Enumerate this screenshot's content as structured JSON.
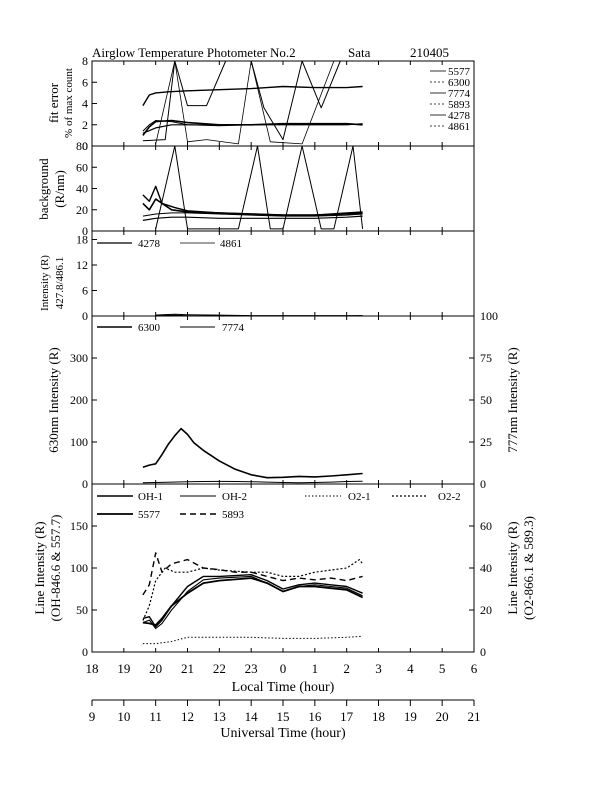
{
  "figure": {
    "title": "Airglow Temperature Photometer No.2",
    "site": "Sata",
    "date": "210405"
  },
  "chart_data": [
    {
      "panel": "fit_error",
      "type": "line",
      "ylabel": [
        "fit error",
        "% of max count"
      ],
      "ylim": [
        0,
        8
      ],
      "yticks": [
        0,
        2,
        4,
        6,
        8
      ],
      "xlim": [
        18,
        30
      ],
      "series": [
        {
          "name": "5577",
          "x": [
            19.6,
            19.8,
            20.0,
            20.4,
            21.0,
            22.0,
            23.0,
            23.5,
            24.0,
            25.0,
            26.0,
            26.5
          ],
          "y": [
            3.8,
            4.8,
            5.0,
            5.1,
            5.2,
            5.3,
            5.4,
            5.5,
            5.6,
            5.5,
            5.5,
            5.6
          ]
        },
        {
          "name": "6300",
          "x": [
            19.6,
            19.8,
            20.0,
            20.5,
            21.0,
            22.0,
            23.0,
            24.0,
            25.0,
            26.0,
            26.5
          ],
          "y": [
            1.0,
            1.8,
            2.3,
            2.4,
            2.2,
            2.0,
            2.0,
            2.1,
            2.1,
            2.1,
            2.0
          ]
        },
        {
          "name": "7774",
          "x": [
            19.6,
            19.8,
            20.0,
            20.5,
            21.0,
            22.0,
            23.0,
            24.0,
            25.0,
            26.0,
            26.5
          ],
          "y": [
            1.4,
            2.0,
            2.4,
            2.3,
            2.0,
            1.9,
            2.0,
            2.1,
            2.1,
            2.1,
            2.0
          ]
        },
        {
          "name": "5893",
          "x": [
            19.6,
            20.0,
            20.5,
            21.0,
            22.0,
            23.0,
            24.0,
            25.0,
            26.0,
            26.5
          ],
          "y": [
            1.2,
            1.7,
            2.0,
            2.0,
            2.0,
            2.0,
            2.0,
            2.0,
            2.0,
            2.1
          ]
        },
        {
          "name": "4278",
          "x": [
            19.6,
            20.3,
            20.6,
            21.0,
            21.6,
            22.2,
            23.0,
            23.4,
            24.0,
            24.6,
            25.2,
            25.8,
            26.2,
            26.5
          ],
          "y": [
            0.5,
            0.6,
            8.0,
            3.8,
            3.8,
            8.0,
            8.0,
            3.6,
            0.6,
            8.0,
            3.6,
            8.0,
            8.0,
            8.0
          ]
        },
        {
          "name": "4861",
          "x": [
            20.0,
            20.6,
            21.0,
            21.6,
            22.6,
            23.0,
            23.6,
            24.6,
            25.6,
            26.5
          ],
          "y": [
            0.2,
            8.0,
            0.4,
            0.6,
            0.2,
            8.0,
            0.4,
            0.2,
            8.0,
            8.0
          ]
        }
      ]
    },
    {
      "panel": "background",
      "type": "line",
      "ylabel": [
        "background",
        "(R/nm)"
      ],
      "ylim": [
        0,
        80
      ],
      "yticks": [
        0,
        20,
        40,
        60,
        80
      ],
      "xlim": [
        18,
        30
      ],
      "series": [
        {
          "name": "5577",
          "x": [
            19.6,
            19.8,
            20.0,
            20.2,
            20.6,
            21.0,
            22.0,
            23.0,
            24.0,
            25.0,
            26.0,
            26.5
          ],
          "y": [
            34,
            28,
            42,
            26,
            22,
            19,
            17,
            16,
            15,
            15,
            17,
            18
          ]
        },
        {
          "name": "6300",
          "x": [
            19.6,
            19.8,
            20.0,
            20.5,
            21.0,
            22.0,
            23.0,
            24.0,
            25.0,
            26.0,
            26.5
          ],
          "y": [
            26,
            20,
            30,
            20,
            18,
            17,
            16,
            15,
            15,
            16,
            17
          ]
        },
        {
          "name": "7774",
          "x": [
            19.6,
            20.0,
            20.5,
            21.0,
            22.0,
            23.0,
            24.0,
            25.0,
            26.0,
            26.5
          ],
          "y": [
            14,
            16,
            17,
            17,
            16,
            15,
            14,
            14,
            15,
            16
          ]
        },
        {
          "name": "5893",
          "x": [
            19.6,
            20.0,
            20.5,
            21.0,
            22.0,
            23.0,
            24.0,
            25.0,
            26.0,
            26.5
          ],
          "y": [
            10,
            12,
            13,
            13,
            12,
            12,
            12,
            12,
            13,
            14
          ]
        },
        {
          "name": "4278",
          "x": [
            20.0,
            20.6,
            21.0,
            21.6,
            22.6,
            23.2,
            23.6,
            24.0,
            24.6,
            25.2,
            25.6,
            26.2,
            26.5
          ],
          "y": [
            2,
            80,
            2,
            2,
            2,
            80,
            2,
            2,
            80,
            2,
            2,
            80,
            2
          ]
        }
      ]
    },
    {
      "panel": "intensity_427_486",
      "type": "line",
      "ylabel": [
        "Intensity (R)",
        "427.8/486.1"
      ],
      "ylim": [
        0,
        20
      ],
      "yticks": [
        0,
        6,
        12,
        18
      ],
      "xlim": [
        18,
        30
      ],
      "series": [
        {
          "name": "4278",
          "x": [
            20.0,
            20.2,
            20.6,
            21.0,
            22.0,
            23.0,
            24.0,
            25.0,
            26.0,
            26.5
          ],
          "y": [
            0.2,
            0.3,
            0.4,
            0.3,
            0.2,
            0.1,
            0.1,
            0.1,
            0.1,
            0.1
          ]
        },
        {
          "name": "4861",
          "x": [
            20.0,
            20.6,
            21.0,
            22.0,
            23.0,
            23.3,
            24.0,
            25.0,
            26.0,
            26.5
          ],
          "y": [
            0.1,
            0.2,
            0.1,
            0.0,
            -0.2,
            -0.3,
            -0.2,
            -0.1,
            0.0,
            0.1
          ]
        }
      ]
    },
    {
      "panel": "red_line",
      "type": "line",
      "ylabel": "630nm Intensity (R)",
      "y2label": "777nm Intensity (R)",
      "ylim": [
        0,
        400
      ],
      "yticks": [
        0,
        100,
        200,
        300
      ],
      "y2lim": [
        0,
        100
      ],
      "y2ticks": [
        0,
        25,
        50,
        75,
        100
      ],
      "xlim": [
        18,
        30
      ],
      "series": [
        {
          "name": "6300",
          "x": [
            19.6,
            19.8,
            20.0,
            20.2,
            20.4,
            20.6,
            20.8,
            21.0,
            21.2,
            21.5,
            22.0,
            22.5,
            23.0,
            23.5,
            24.0,
            24.5,
            25.0,
            25.5,
            26.0,
            26.5
          ],
          "y": [
            40,
            45,
            48,
            70,
            95,
            115,
            132,
            118,
            98,
            80,
            55,
            35,
            22,
            15,
            16,
            18,
            17,
            19,
            22,
            25
          ]
        },
        {
          "name": "7774",
          "x": [
            19.6,
            20.0,
            20.5,
            21.0,
            21.5,
            22.0,
            22.5,
            23.0,
            23.5,
            24.0,
            24.5,
            25.0,
            25.5,
            26.0,
            26.5
          ],
          "y": [
            3.0,
            3.5,
            4.5,
            5.5,
            6.0,
            6.2,
            6.0,
            5.5,
            4.5,
            3.5,
            3.0,
            3.5,
            4.5,
            6.0,
            6.5
          ]
        }
      ]
    },
    {
      "panel": "line_intensity",
      "type": "line",
      "ylabel": [
        "Line Intensity (R)",
        "(OH-846.6 & 557.7)"
      ],
      "y2label": [
        "Line Intensity (R)",
        "(O2-866.1 & 589.3)"
      ],
      "ylim": [
        0,
        200
      ],
      "yticks": [
        0,
        50,
        100,
        150
      ],
      "y2lim": [
        0,
        80
      ],
      "y2ticks": [
        0,
        20,
        40,
        60
      ],
      "xlim": [
        18,
        30
      ],
      "series": [
        {
          "name": "OH-1",
          "axis": "left",
          "x": [
            19.6,
            19.8,
            20.0,
            20.2,
            20.5,
            21.0,
            21.5,
            22.0,
            23.0,
            23.5,
            24.0,
            24.5,
            25.0,
            25.5,
            26.0,
            26.5
          ],
          "y": [
            40,
            42,
            30,
            38,
            55,
            78,
            90,
            90,
            92,
            85,
            75,
            80,
            82,
            80,
            78,
            70
          ]
        },
        {
          "name": "OH-2",
          "axis": "left",
          "x": [
            19.6,
            19.8,
            20.0,
            20.2,
            20.5,
            21.0,
            21.5,
            22.0,
            23.0,
            23.5,
            24.0,
            24.5,
            25.0,
            25.5,
            26.0,
            26.5
          ],
          "y": [
            35,
            38,
            28,
            34,
            50,
            72,
            86,
            88,
            90,
            82,
            72,
            78,
            80,
            78,
            76,
            67
          ]
        },
        {
          "name": "O2-1",
          "axis": "right",
          "x": [
            19.6,
            20.0,
            20.5,
            21.0,
            22.0,
            23.0,
            24.0,
            25.0,
            26.0,
            26.5
          ],
          "y": [
            4,
            4,
            5,
            7,
            7,
            7,
            6.5,
            6.5,
            7,
            7.5
          ]
        },
        {
          "name": "O2-2",
          "axis": "right",
          "x": [
            19.6,
            19.8,
            20.0,
            20.3,
            20.6,
            21.0,
            21.5,
            22.0,
            23.0,
            23.5,
            24.0,
            24.5,
            25.0,
            25.5,
            26.0,
            26.4,
            26.5
          ],
          "y": [
            15,
            22,
            34,
            40,
            38,
            38,
            40,
            39,
            38,
            38,
            36,
            36,
            38,
            39,
            40,
            44,
            42
          ]
        },
        {
          "name": "5577",
          "axis": "left",
          "x": [
            19.6,
            19.8,
            20.0,
            20.2,
            20.5,
            21.0,
            21.5,
            22.0,
            23.0,
            23.5,
            24.0,
            24.5,
            25.0,
            25.5,
            26.0,
            26.5
          ],
          "y": [
            35,
            34,
            32,
            40,
            55,
            70,
            82,
            85,
            88,
            82,
            72,
            78,
            78,
            76,
            74,
            65
          ]
        },
        {
          "name": "5893",
          "axis": "left",
          "x": [
            19.6,
            19.8,
            20.0,
            20.2,
            20.5,
            21.0,
            21.5,
            22.0,
            22.5,
            23.0,
            23.5,
            24.0,
            24.5,
            25.0,
            25.5,
            26.0,
            26.5
          ],
          "y": [
            68,
            80,
            118,
            95,
            105,
            110,
            100,
            98,
            95,
            95,
            90,
            85,
            88,
            86,
            88,
            85,
            90
          ]
        }
      ]
    }
  ],
  "axes": {
    "local_time": {
      "label": "Local Time (hour)",
      "ticks": [
        "18",
        "19",
        "20",
        "21",
        "22",
        "23",
        "0",
        "1",
        "2",
        "3",
        "4",
        "5",
        "6"
      ]
    },
    "universal_time": {
      "label": "Universal Time (hour)",
      "ticks": [
        "9",
        "10",
        "11",
        "12",
        "13",
        "14",
        "15",
        "16",
        "17",
        "18",
        "19",
        "20",
        "21"
      ]
    }
  },
  "legends": {
    "fit_error": [
      "5577",
      "6300",
      "7774",
      "5893",
      "4278",
      "4861"
    ],
    "intensity_427_486": [
      "4278",
      "4861"
    ],
    "red_line": [
      "6300",
      "7774"
    ],
    "line_intensity": [
      "OH-1",
      "OH-2",
      "O2-1",
      "O2-2",
      "5577",
      "5893"
    ]
  }
}
